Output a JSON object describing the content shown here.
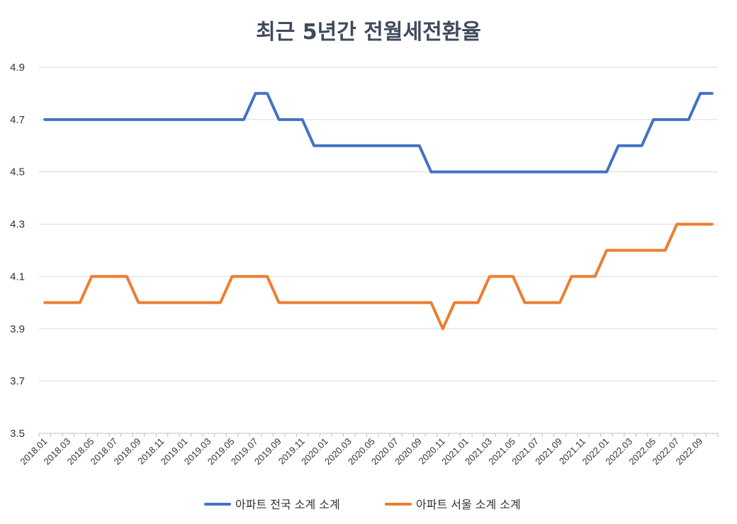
{
  "chart_data": {
    "type": "line",
    "title": "최근 5년간 전월세전환율",
    "xlabel": "",
    "ylabel": "",
    "ylim": [
      3.5,
      4.9
    ],
    "yticks": [
      "3.5",
      "3.7",
      "3.9",
      "4.1",
      "4.3",
      "4.5",
      "4.7",
      "4.9"
    ],
    "grid": true,
    "legend_position": "bottom",
    "x": [
      "2018.01",
      "2018.02",
      "2018.03",
      "2018.04",
      "2018.05",
      "2018.06",
      "2018.07",
      "2018.08",
      "2018.09",
      "2018.10",
      "2018.11",
      "2018.12",
      "2019.01",
      "2019.02",
      "2019.03",
      "2019.04",
      "2019.05",
      "2019.06",
      "2019.07",
      "2019.08",
      "2019.09",
      "2019.10",
      "2019.11",
      "2019.12",
      "2020.01",
      "2020.02",
      "2020.03",
      "2020.04",
      "2020.05",
      "2020.06",
      "2020.07",
      "2020.08",
      "2020.09",
      "2020.10",
      "2020.11",
      "2020.12",
      "2021.01",
      "2021.02",
      "2021.03",
      "2021.04",
      "2021.05",
      "2021.06",
      "2021.07",
      "2021.08",
      "2021.09",
      "2021.10",
      "2021.11",
      "2021.12",
      "2022.01",
      "2022.02",
      "2022.03",
      "2022.04",
      "2022.05",
      "2022.06",
      "2022.07",
      "2022.08",
      "2022.09",
      "2022.10"
    ],
    "x_tick_labels": [
      "2018.01",
      "2018.03",
      "2018.05",
      "2018.07",
      "2018.09",
      "2018.11",
      "2019.01",
      "2019.03",
      "2019.05",
      "2019.07",
      "2019.09",
      "2019.11",
      "2020.01",
      "2020.03",
      "2020.05",
      "2020.07",
      "2020.09",
      "2020.11",
      "2021.01",
      "2021.03",
      "2021.05",
      "2021.07",
      "2021.09",
      "2021.11",
      "2022.01",
      "2022.03",
      "2022.05",
      "2022.07",
      "2022.09"
    ],
    "series": [
      {
        "name": "아파트 전국 소계 소계",
        "color": "#4472c4",
        "values": [
          4.7,
          4.7,
          4.7,
          4.7,
          4.7,
          4.7,
          4.7,
          4.7,
          4.7,
          4.7,
          4.7,
          4.7,
          4.7,
          4.7,
          4.7,
          4.7,
          4.7,
          4.7,
          4.8,
          4.8,
          4.7,
          4.7,
          4.7,
          4.6,
          4.6,
          4.6,
          4.6,
          4.6,
          4.6,
          4.6,
          4.6,
          4.6,
          4.6,
          4.5,
          4.5,
          4.5,
          4.5,
          4.5,
          4.5,
          4.5,
          4.5,
          4.5,
          4.5,
          4.5,
          4.5,
          4.5,
          4.5,
          4.5,
          4.5,
          4.6,
          4.6,
          4.6,
          4.7,
          4.7,
          4.7,
          4.7,
          4.8,
          4.8
        ]
      },
      {
        "name": "아파트 서울 소계 소계",
        "color": "#ed7d31",
        "values": [
          4.0,
          4.0,
          4.0,
          4.0,
          4.1,
          4.1,
          4.1,
          4.1,
          4.0,
          4.0,
          4.0,
          4.0,
          4.0,
          4.0,
          4.0,
          4.0,
          4.1,
          4.1,
          4.1,
          4.1,
          4.0,
          4.0,
          4.0,
          4.0,
          4.0,
          4.0,
          4.0,
          4.0,
          4.0,
          4.0,
          4.0,
          4.0,
          4.0,
          4.0,
          3.9,
          4.0,
          4.0,
          4.0,
          4.1,
          4.1,
          4.1,
          4.0,
          4.0,
          4.0,
          4.0,
          4.1,
          4.1,
          4.1,
          4.2,
          4.2,
          4.2,
          4.2,
          4.2,
          4.2,
          4.3,
          4.3,
          4.3,
          4.3
        ]
      }
    ]
  }
}
